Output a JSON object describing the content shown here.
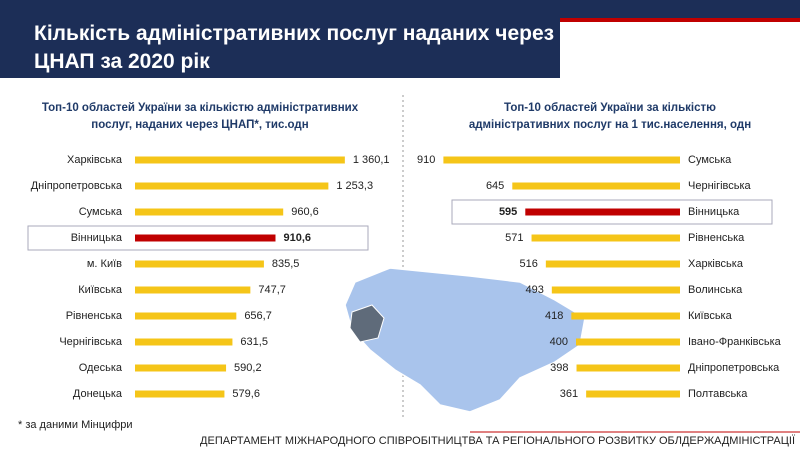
{
  "title": [
    "Кількість адміністративних послуг наданих через",
    "ЦНАП за 2020 рік"
  ],
  "footnote": "* за даними Мінцифри",
  "footer": "ДЕПАРТАМЕНТ МІЖНАРОДНОГО СПІВРОБІТНИЦТВА ТА РЕГІОНАЛЬНОГО РОЗВИТКУ ОБЛДЕРЖАДМІНІСТРАЦІЇ",
  "chart_data": [
    {
      "type": "bar",
      "orientation": "horizontal",
      "xreverse": false,
      "title": [
        "Топ-10 областей України за кількістю адміністративних",
        "послуг, наданих через ЦНАП*, тис.одн"
      ],
      "categories": [
        "Харківська",
        "Дніпропетровська",
        "Сумська",
        "Вінницька",
        "м. Київ",
        "Київська",
        "Рівненська",
        "Чернігівська",
        "Одеська",
        "Донецька"
      ],
      "values": [
        1360.1,
        1253.3,
        960.6,
        910.6,
        835.5,
        747.7,
        656.7,
        631.5,
        590.2,
        579.6
      ],
      "value_labels": [
        "1 360,1",
        "1 253,3",
        "960,6",
        "910,6",
        "835,5",
        "747,7",
        "656,7",
        "631,5",
        "590,2",
        "579,6"
      ],
      "color": "#f5c518",
      "colors": [
        "#f5c518",
        "#f5c518",
        "#f5c518",
        "#c00000",
        "#f5c518",
        "#f5c518",
        "#f5c518",
        "#f5c518",
        "#f5c518",
        "#f5c518"
      ],
      "xlim": [
        0,
        1400
      ]
    },
    {
      "type": "bar",
      "orientation": "horizontal",
      "xreverse": true,
      "title": [
        "Топ-10 областей України за кількістю",
        "адміністративних послуг на 1 тис.населення, одн"
      ],
      "categories": [
        "Сумська",
        "Чернігівська",
        "Вінницька",
        "Рівненська",
        "Харківська",
        "Волинська",
        "Київська",
        "Івано-Франківська",
        "Дніпропетровська",
        "Полтавська"
      ],
      "values": [
        910,
        645,
        595,
        571,
        516,
        493,
        418,
        400,
        398,
        361
      ],
      "color": "#f5c518",
      "colors": [
        "#f5c518",
        "#f5c518",
        "#c00000",
        "#f5c518",
        "#f5c518",
        "#f5c518",
        "#f5c518",
        "#f5c518",
        "#f5c518",
        "#f5c518"
      ],
      "xlim": [
        0,
        1000
      ]
    }
  ]
}
